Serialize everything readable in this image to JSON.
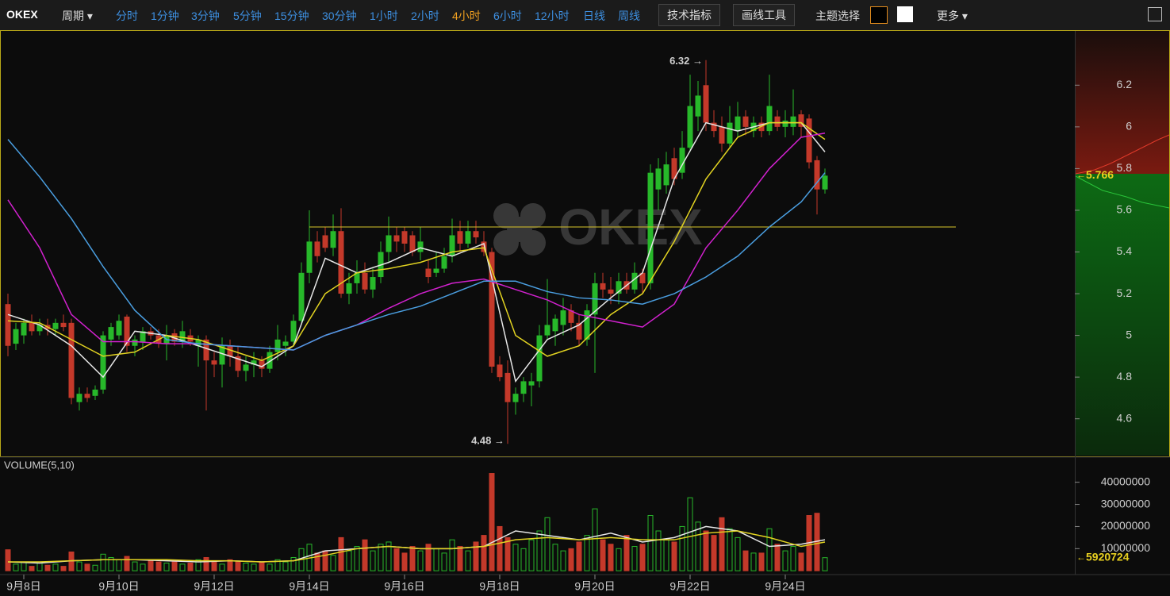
{
  "toolbar": {
    "brand": "OKEX",
    "period": "周期",
    "intervals": [
      "分时",
      "1分钟",
      "3分钟",
      "5分钟",
      "15分钟",
      "30分钟",
      "1小时",
      "2小时",
      "4小时",
      "6小时",
      "12小时",
      "日线",
      "周线"
    ],
    "active_interval": 8,
    "buttons": [
      "技术指标",
      "画线工具"
    ],
    "theme": "主题选择",
    "more": "更多"
  },
  "chart_data": [
    {
      "type": "candlestick",
      "watermark": "OKEX",
      "xlim": [
        -1,
        134.5
      ],
      "ylim": [
        4.42,
        6.46
      ],
      "yticks": [
        4.6,
        4.8,
        5,
        5.2,
        5.4,
        5.6,
        5.8,
        6,
        6.2
      ],
      "up_color": "#27b82a",
      "down_color": "#c4392a",
      "open": [
        5.15,
        4.96,
        5.0,
        5.06,
        5.02,
        5.05,
        5.03,
        5.06,
        5.06,
        4.68,
        4.72,
        4.71,
        4.74,
        4.98,
        5.0,
        5.09,
        4.95,
        4.97,
        5.02,
        5.0,
        4.96,
        5.01,
        4.97,
        5.0,
        4.95,
        4.98,
        4.88,
        4.86,
        4.95,
        4.9,
        4.83,
        4.86,
        4.88,
        4.84,
        4.92,
        4.95,
        4.97,
        5.07,
        5.3,
        5.45,
        5.48,
        5.42,
        5.5,
        5.2,
        5.25,
        5.3,
        5.22,
        5.28,
        5.4,
        5.48,
        5.5,
        5.48,
        5.4,
        5.32,
        5.3,
        5.32,
        5.38,
        5.5,
        5.44,
        5.5,
        5.45,
        5.4,
        4.86,
        4.82,
        4.68,
        4.72,
        4.76,
        4.78,
        5.0,
        5.02,
        5.05,
        5.12,
        5.06,
        4.98,
        5.1,
        5.25,
        5.22,
        5.2,
        5.26,
        5.22,
        5.3,
        5.25,
        5.7,
        5.72,
        5.85,
        5.78,
        5.9,
        6.05,
        6.2,
        6.02,
        6.0,
        5.92,
        5.98,
        6.05,
        5.98,
        6.02,
        5.98,
        6.05,
        6.0,
        6.0,
        6.06,
        6.04,
        5.84,
        5.7
      ],
      "high": [
        5.2,
        5.06,
        5.08,
        5.1,
        5.08,
        5.08,
        5.08,
        5.1,
        5.08,
        4.75,
        4.75,
        4.76,
        5.02,
        5.06,
        5.1,
        5.1,
        5.0,
        5.04,
        5.04,
        5.03,
        5.05,
        5.03,
        5.07,
        5.03,
        5.0,
        5.0,
        4.92,
        4.99,
        4.98,
        4.95,
        4.9,
        4.92,
        4.9,
        4.95,
        5.05,
        5.0,
        5.1,
        5.35,
        5.6,
        5.5,
        5.52,
        5.58,
        5.61,
        5.3,
        5.36,
        5.35,
        5.32,
        5.45,
        5.57,
        5.52,
        5.52,
        5.5,
        5.52,
        5.36,
        5.4,
        5.42,
        5.56,
        5.55,
        5.55,
        5.55,
        5.5,
        5.42,
        4.9,
        4.88,
        4.75,
        4.8,
        4.82,
        5.05,
        5.27,
        5.1,
        5.18,
        5.15,
        5.1,
        5.15,
        5.3,
        5.3,
        5.28,
        5.3,
        5.3,
        5.35,
        5.32,
        5.82,
        5.85,
        5.88,
        5.9,
        5.98,
        6.25,
        6.22,
        6.32,
        6.08,
        6.05,
        6.1,
        6.12,
        6.08,
        6.05,
        6.05,
        6.25,
        6.08,
        6.08,
        6.18,
        6.08,
        6.06,
        5.86,
        5.8
      ],
      "low": [
        4.9,
        4.93,
        4.96,
        5.0,
        5.0,
        5.0,
        5.0,
        5.02,
        4.67,
        4.64,
        4.68,
        4.69,
        4.72,
        4.95,
        4.98,
        4.92,
        4.9,
        4.93,
        4.98,
        4.94,
        4.88,
        4.95,
        4.94,
        4.95,
        4.85,
        4.64,
        4.8,
        4.75,
        4.85,
        4.8,
        4.78,
        4.8,
        4.8,
        4.82,
        4.88,
        4.9,
        4.95,
        5.05,
        5.25,
        5.35,
        5.4,
        5.38,
        5.18,
        5.15,
        5.2,
        5.2,
        5.18,
        5.25,
        5.35,
        5.4,
        5.4,
        5.38,
        5.36,
        5.25,
        5.28,
        5.3,
        5.35,
        5.4,
        5.42,
        5.44,
        5.38,
        4.82,
        4.78,
        4.48,
        4.62,
        4.68,
        4.66,
        4.75,
        4.98,
        4.95,
        5.0,
        5.02,
        4.95,
        4.95,
        4.82,
        5.18,
        5.15,
        5.15,
        5.2,
        5.2,
        5.2,
        5.22,
        5.6,
        5.68,
        5.72,
        5.75,
        5.88,
        5.98,
        5.98,
        5.95,
        5.88,
        5.9,
        5.95,
        5.96,
        5.95,
        5.95,
        5.96,
        5.98,
        5.95,
        5.96,
        5.95,
        5.8,
        5.58,
        5.68
      ],
      "close": [
        4.95,
        5.03,
        5.06,
        5.02,
        5.05,
        5.03,
        5.06,
        5.04,
        4.7,
        4.72,
        4.7,
        4.74,
        5.0,
        5.04,
        5.07,
        4.95,
        4.98,
        5.02,
        5.0,
        4.96,
        5.0,
        4.97,
        5.02,
        4.97,
        4.98,
        4.88,
        4.86,
        4.95,
        4.9,
        4.83,
        4.86,
        4.88,
        4.84,
        4.92,
        4.98,
        4.97,
        5.07,
        5.3,
        5.45,
        5.38,
        5.42,
        5.5,
        5.2,
        5.25,
        5.3,
        5.22,
        5.28,
        5.4,
        5.48,
        5.45,
        5.44,
        5.4,
        5.45,
        5.28,
        5.32,
        5.38,
        5.48,
        5.44,
        5.5,
        5.47,
        5.4,
        4.85,
        4.8,
        4.68,
        4.72,
        4.78,
        4.78,
        5.0,
        5.05,
        5.08,
        5.12,
        5.06,
        4.98,
        5.12,
        5.25,
        5.22,
        5.2,
        5.26,
        5.22,
        5.3,
        5.25,
        5.78,
        5.8,
        5.82,
        5.75,
        5.9,
        6.1,
        6.15,
        6.02,
        5.98,
        5.92,
        6.02,
        6.05,
        6.0,
        6.02,
        5.98,
        6.1,
        6.0,
        6.03,
        6.05,
        6.0,
        5.83,
        5.7,
        5.766
      ],
      "series": [
        {
          "color": "#e6e6e6",
          "x": [
            0,
            4,
            8,
            12,
            16,
            20,
            24,
            28,
            32,
            36,
            40,
            44,
            48,
            52,
            56,
            60,
            64,
            68,
            72,
            76,
            80,
            84,
            88,
            92,
            96,
            100,
            103
          ],
          "values": [
            5.1,
            5.05,
            4.95,
            4.8,
            5.02,
            5.0,
            4.95,
            4.9,
            4.85,
            4.95,
            5.37,
            5.3,
            5.35,
            5.42,
            5.38,
            5.44,
            4.78,
            4.98,
            5.05,
            5.18,
            5.3,
            5.75,
            6.02,
            5.98,
            6.02,
            6.02,
            5.88
          ]
        },
        {
          "color": "#e2d321",
          "x": [
            0,
            4,
            8,
            12,
            16,
            20,
            24,
            28,
            32,
            36,
            40,
            44,
            48,
            52,
            56,
            60,
            64,
            68,
            72,
            76,
            80,
            84,
            88,
            92,
            96,
            100,
            103
          ],
          "values": [
            5.07,
            5.06,
            4.98,
            4.9,
            4.92,
            5.0,
            4.98,
            4.93,
            4.88,
            4.95,
            5.2,
            5.3,
            5.32,
            5.35,
            5.4,
            5.42,
            5.0,
            4.9,
            4.95,
            5.1,
            5.2,
            5.45,
            5.75,
            5.95,
            6.02,
            6.02,
            5.94
          ]
        },
        {
          "color": "#d221cf",
          "x": [
            0,
            4,
            8,
            12,
            16,
            20,
            24,
            28,
            32,
            36,
            40,
            44,
            48,
            52,
            56,
            60,
            64,
            68,
            72,
            76,
            80,
            84,
            88,
            92,
            96,
            100,
            103
          ],
          "values": [
            5.65,
            5.42,
            5.1,
            4.97,
            4.97,
            4.96,
            4.96,
            4.95,
            4.94,
            4.93,
            5.0,
            5.05,
            5.13,
            5.2,
            5.25,
            5.27,
            5.22,
            5.17,
            5.1,
            5.07,
            5.04,
            5.15,
            5.42,
            5.6,
            5.8,
            5.95,
            5.97
          ]
        },
        {
          "color": "#4a9ee0",
          "x": [
            0,
            4,
            8,
            12,
            16,
            20,
            24,
            28,
            32,
            36,
            40,
            44,
            48,
            52,
            56,
            60,
            64,
            68,
            72,
            76,
            80,
            84,
            88,
            92,
            96,
            100,
            103
          ],
          "values": [
            5.94,
            5.76,
            5.56,
            5.33,
            5.12,
            4.98,
            4.96,
            4.95,
            4.94,
            4.93,
            5.0,
            5.05,
            5.1,
            5.14,
            5.2,
            5.26,
            5.26,
            5.21,
            5.18,
            5.17,
            5.15,
            5.2,
            5.28,
            5.38,
            5.52,
            5.64,
            5.78
          ]
        }
      ],
      "levels": [
        {
          "value": 5.52,
          "from": 38,
          "to": 119.5,
          "color": "#d8c62a"
        }
      ],
      "annotations": [
        {
          "text": "6.32 →",
          "x": 88,
          "y": 6.32
        },
        {
          "text": "4.48 →",
          "x": 63,
          "y": 4.48
        }
      ]
    },
    {
      "type": "bar",
      "title": "VOLUME(5,10)",
      "ylim": [
        -1000000,
        51000000
      ],
      "yticks": [
        10000000,
        20000000,
        30000000,
        40000000
      ],
      "xticks": [
        {
          "value": 2,
          "label": "9月8日"
        },
        {
          "value": 14,
          "label": "9月10日"
        },
        {
          "value": 26,
          "label": "9月12日"
        },
        {
          "value": 38,
          "label": "9月14日"
        },
        {
          "value": 50,
          "label": "9月16日"
        },
        {
          "value": 62,
          "label": "9月18日"
        },
        {
          "value": 74,
          "label": "9月20日"
        },
        {
          "value": 86,
          "label": "9月22日"
        },
        {
          "value": 98,
          "label": "9月24日"
        }
      ],
      "values": [
        9500000,
        3000000,
        4000000,
        2000000,
        3500000,
        2500000,
        3000000,
        2000000,
        8500000,
        4000000,
        3000000,
        2500000,
        7500000,
        6000000,
        5000000,
        6500000,
        4000000,
        3000000,
        5000000,
        4000000,
        3500000,
        4500000,
        3000000,
        3500000,
        5000000,
        6000000,
        4000000,
        3000000,
        5000000,
        4000000,
        3500000,
        3000000,
        4000000,
        3000000,
        5000000,
        4000000,
        6000000,
        10000000,
        12000000,
        8000000,
        9000000,
        7000000,
        15000000,
        9000000,
        11000000,
        14000000,
        9000000,
        12000000,
        13000000,
        10000000,
        8000000,
        11000000,
        9000000,
        12000000,
        10000000,
        8000000,
        14000000,
        11000000,
        9000000,
        13000000,
        16000000,
        44000000,
        20000000,
        15000000,
        12000000,
        10000000,
        14000000,
        18000000,
        24000000,
        12000000,
        9000000,
        10000000,
        13000000,
        16000000,
        28000000,
        14000000,
        12000000,
        10000000,
        16000000,
        11000000,
        12000000,
        25000000,
        18000000,
        14000000,
        13000000,
        20000000,
        33000000,
        22000000,
        18000000,
        16000000,
        24000000,
        19000000,
        15000000,
        9000000,
        8000000,
        8000000,
        19000000,
        12000000,
        9000000,
        11000000,
        8000000,
        25000000,
        26000000,
        5920724
      ],
      "series": [
        {
          "color": "#e6e6e6",
          "x": [
            0,
            4,
            8,
            12,
            16,
            20,
            24,
            28,
            32,
            36,
            40,
            44,
            48,
            52,
            56,
            60,
            64,
            68,
            72,
            76,
            80,
            84,
            88,
            92,
            96,
            100,
            103
          ],
          "values": [
            4000000,
            3500000,
            4500000,
            5000000,
            5000000,
            4500000,
            4000000,
            4500000,
            4000000,
            4500000,
            9000000,
            10000000,
            11000000,
            10000000,
            10000000,
            11000000,
            18000000,
            16000000,
            14000000,
            17000000,
            13000000,
            15000000,
            20000000,
            18000000,
            11000000,
            12000000,
            14000000
          ]
        },
        {
          "color": "#e2d321",
          "x": [
            0,
            4,
            8,
            12,
            16,
            20,
            24,
            28,
            32,
            36,
            40,
            44,
            48,
            52,
            56,
            60,
            64,
            68,
            72,
            76,
            80,
            84,
            88,
            92,
            96,
            100,
            103
          ],
          "values": [
            4000000,
            4000000,
            4500000,
            5000000,
            5000000,
            5000000,
            4500000,
            4500000,
            4000000,
            4500000,
            7000000,
            10000000,
            11000000,
            10000000,
            10000000,
            11000000,
            14000000,
            15000000,
            14000000,
            15000000,
            14000000,
            14000000,
            17000000,
            18000000,
            15000000,
            11000000,
            13000000
          ]
        }
      ]
    }
  ]
}
